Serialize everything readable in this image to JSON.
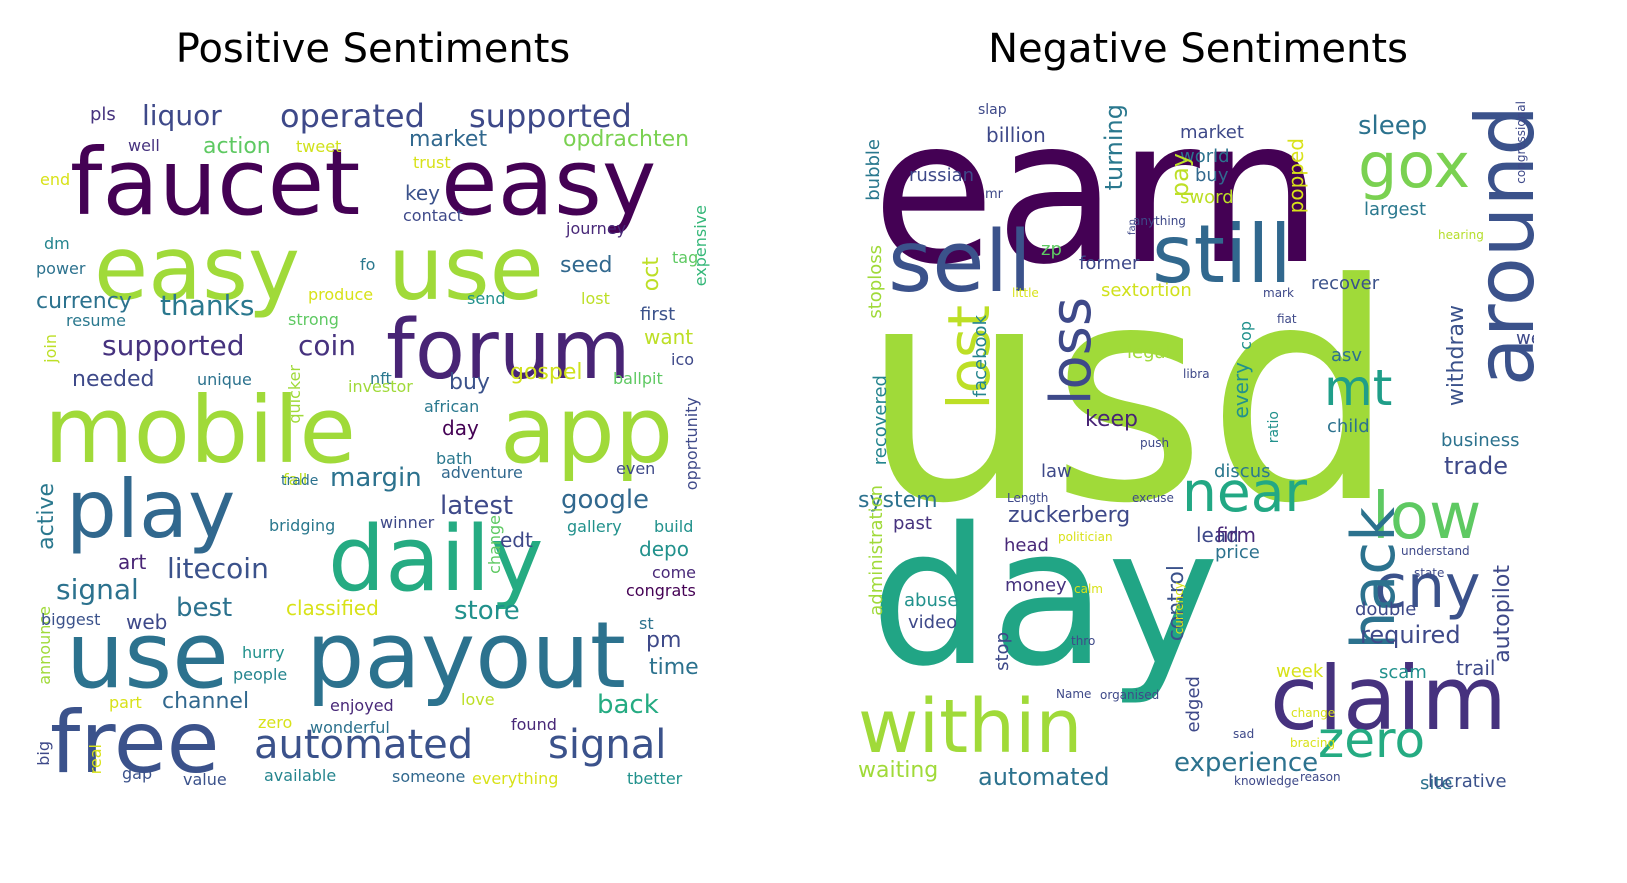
{
  "panels": [
    {
      "title": "Positive Sentiments",
      "words": [
        {
          "t": "faucet",
          "c": "#440154"
        },
        {
          "t": "easy",
          "c": "#440154"
        },
        {
          "t": "easy",
          "c": "#a0da39"
        },
        {
          "t": "use",
          "c": "#a0da39"
        },
        {
          "t": "forum",
          "c": "#482475"
        },
        {
          "t": "mobile",
          "c": "#a0da39"
        },
        {
          "t": "app",
          "c": "#a0da39"
        },
        {
          "t": "play",
          "c": "#31688e"
        },
        {
          "t": "daily",
          "c": "#25ab82"
        },
        {
          "t": "use",
          "c": "#2c728e"
        },
        {
          "t": "payout",
          "c": "#2c728e"
        },
        {
          "t": "free",
          "c": "#3b528b"
        },
        {
          "t": "automated",
          "c": "#3b528b"
        },
        {
          "t": "signal",
          "c": "#3b528b"
        },
        {
          "t": "operated",
          "c": "#3e4989"
        },
        {
          "t": "supported",
          "c": "#3e4989"
        },
        {
          "t": "liquor",
          "c": "#3e4989"
        },
        {
          "t": "pls",
          "c": "#46327e"
        },
        {
          "t": "action",
          "c": "#5ec962"
        },
        {
          "t": "tweet",
          "c": "#d0e11c"
        },
        {
          "t": "well",
          "c": "#46327e"
        },
        {
          "t": "market",
          "c": "#31688e"
        },
        {
          "t": "opdrachten",
          "c": "#7ad151"
        },
        {
          "t": "trust",
          "c": "#d8e219"
        },
        {
          "t": "end",
          "c": "#d8e219"
        },
        {
          "t": "key",
          "c": "#3b528b"
        },
        {
          "t": "contact",
          "c": "#3e4989"
        },
        {
          "t": "journey",
          "c": "#482878"
        },
        {
          "t": "dm",
          "c": "#25858e"
        },
        {
          "t": "power",
          "c": "#2c728e"
        },
        {
          "t": "fo",
          "c": "#2a788e"
        },
        {
          "t": "seed",
          "c": "#31688e"
        },
        {
          "t": "oct",
          "c": "#bddf26"
        },
        {
          "t": "tag",
          "c": "#5ec962"
        },
        {
          "t": "expensive",
          "c": "#35b779"
        },
        {
          "t": "currency",
          "c": "#2c728e"
        },
        {
          "t": "thanks",
          "c": "#2a788e"
        },
        {
          "t": "resume",
          "c": "#2a788e"
        },
        {
          "t": "produce",
          "c": "#d8e219"
        },
        {
          "t": "strong",
          "c": "#5ec962"
        },
        {
          "t": "send",
          "c": "#21918c"
        },
        {
          "t": "lost",
          "c": "#bddf26"
        },
        {
          "t": "first",
          "c": "#3b528b"
        },
        {
          "t": "supported",
          "c": "#46327e"
        },
        {
          "t": "coin",
          "c": "#46327e"
        },
        {
          "t": "want",
          "c": "#bddf26"
        },
        {
          "t": "join",
          "c": "#bddf26"
        },
        {
          "t": "needed",
          "c": "#3e4989"
        },
        {
          "t": "unique",
          "c": "#2c728e"
        },
        {
          "t": "quicker",
          "c": "#a0da39"
        },
        {
          "t": "nft",
          "c": "#2a788e"
        },
        {
          "t": "investor",
          "c": "#a0da39"
        },
        {
          "t": "buy",
          "c": "#3b528b"
        },
        {
          "t": "gospel",
          "c": "#d0e11c"
        },
        {
          "t": "ico",
          "c": "#3e4989"
        },
        {
          "t": "ballpit",
          "c": "#5ec962"
        },
        {
          "t": "african",
          "c": "#2a788e"
        },
        {
          "t": "day",
          "c": "#440154"
        },
        {
          "t": "opportunity",
          "c": "#3e4989"
        },
        {
          "t": "bath",
          "c": "#2a788e"
        },
        {
          "t": "adventure",
          "c": "#31688e"
        },
        {
          "t": "even",
          "c": "#3e4989"
        },
        {
          "t": "active",
          "c": "#2a788e"
        },
        {
          "t": "margin",
          "c": "#2c728e"
        },
        {
          "t": "fall",
          "c": "#bddf26"
        },
        {
          "t": "latest",
          "c": "#3e4989"
        },
        {
          "t": "google",
          "c": "#31688e"
        },
        {
          "t": "trade",
          "c": "#2c728e"
        },
        {
          "t": "bridging",
          "c": "#2a788e"
        },
        {
          "t": "winner",
          "c": "#3e4989"
        },
        {
          "t": "gallery",
          "c": "#21918c"
        },
        {
          "t": "build",
          "c": "#21918c"
        },
        {
          "t": "change",
          "c": "#5ec962"
        },
        {
          "t": "edt",
          "c": "#3e4989"
        },
        {
          "t": "depo",
          "c": "#21918c"
        },
        {
          "t": "art",
          "c": "#482475"
        },
        {
          "t": "litecoin",
          "c": "#3b528b"
        },
        {
          "t": "come",
          "c": "#482878"
        },
        {
          "t": "signal",
          "c": "#2c728e"
        },
        {
          "t": "congrats",
          "c": "#440154"
        },
        {
          "t": "best",
          "c": "#2c728e"
        },
        {
          "t": "announce",
          "c": "#a0da39"
        },
        {
          "t": "biggest",
          "c": "#3b528b"
        },
        {
          "t": "web",
          "c": "#3e4989"
        },
        {
          "t": "classified",
          "c": "#d8e219"
        },
        {
          "t": "store",
          "c": "#21918c"
        },
        {
          "t": "st",
          "c": "#2c728e"
        },
        {
          "t": "pm",
          "c": "#3e4989"
        },
        {
          "t": "time",
          "c": "#2c728e"
        },
        {
          "t": "hurry",
          "c": "#21918c"
        },
        {
          "t": "people",
          "c": "#25858e"
        },
        {
          "t": "part",
          "c": "#d8e219"
        },
        {
          "t": "channel",
          "c": "#31688e"
        },
        {
          "t": "enjoyed",
          "c": "#482878"
        },
        {
          "t": "love",
          "c": "#bddf26"
        },
        {
          "t": "back",
          "c": "#25ab82"
        },
        {
          "t": "zero",
          "c": "#d8e219"
        },
        {
          "t": "wonderful",
          "c": "#2c728e"
        },
        {
          "t": "found",
          "c": "#482878"
        },
        {
          "t": "big",
          "c": "#3e4989"
        },
        {
          "t": "real",
          "c": "#d8e219"
        },
        {
          "t": "gap",
          "c": "#3b528b"
        },
        {
          "t": "value",
          "c": "#3b528b"
        },
        {
          "t": "available",
          "c": "#25858e"
        },
        {
          "t": "someone",
          "c": "#31688e"
        },
        {
          "t": "everything",
          "c": "#d8e219"
        },
        {
          "t": "tbetter",
          "c": "#21918c"
        }
      ]
    },
    {
      "title": "Negative Sentiments",
      "words": [
        {
          "t": "earn",
          "c": "#440154"
        },
        {
          "t": "usd",
          "c": "#a0da39"
        },
        {
          "t": "day",
          "c": "#21a585"
        },
        {
          "t": "sell",
          "c": "#3b528b"
        },
        {
          "t": "still",
          "c": "#31688e"
        },
        {
          "t": "around",
          "c": "#3b528b"
        },
        {
          "t": "gox",
          "c": "#7ad151"
        },
        {
          "t": "within",
          "c": "#a0da39"
        },
        {
          "t": "claim",
          "c": "#46327e"
        },
        {
          "t": "near",
          "c": "#22a884"
        },
        {
          "t": "low",
          "c": "#5ec962"
        },
        {
          "t": "cny",
          "c": "#3b528b"
        },
        {
          "t": "hack",
          "c": "#2c728e"
        },
        {
          "t": "mt",
          "c": "#1f9e89"
        },
        {
          "t": "loss",
          "c": "#3e4989"
        },
        {
          "t": "lost",
          "c": "#bddf26"
        },
        {
          "t": "zero",
          "c": "#25ab82"
        },
        {
          "t": "sleep",
          "c": "#2c728e"
        },
        {
          "t": "slap",
          "c": "#3e4989"
        },
        {
          "t": "billion",
          "c": "#3e4989"
        },
        {
          "t": "russian",
          "c": "#3e4989"
        },
        {
          "t": "mr",
          "c": "#3e4989"
        },
        {
          "t": "bubble",
          "c": "#2a788e"
        },
        {
          "t": "turning",
          "c": "#2a788e"
        },
        {
          "t": "market",
          "c": "#3e4989"
        },
        {
          "t": "world",
          "c": "#2c728e"
        },
        {
          "t": "buy",
          "c": "#31688e"
        },
        {
          "t": "sword",
          "c": "#bddf26"
        },
        {
          "t": "pay",
          "c": "#bddf26"
        },
        {
          "t": "popped",
          "c": "#d8e219"
        },
        {
          "t": "largest",
          "c": "#2a788e"
        },
        {
          "t": "congressional",
          "c": "#3e4989"
        },
        {
          "t": "hearing",
          "c": "#b5de2b"
        },
        {
          "t": "anything",
          "c": "#3e4989"
        },
        {
          "t": "fan",
          "c": "#3e4989"
        },
        {
          "t": "zp",
          "c": "#5ec962"
        },
        {
          "t": "former",
          "c": "#3e4989"
        },
        {
          "t": "little",
          "c": "#d8e219"
        },
        {
          "t": "sextortion",
          "c": "#d0e11c"
        },
        {
          "t": "recover",
          "c": "#3b528b"
        },
        {
          "t": "mark",
          "c": "#3e4989"
        },
        {
          "t": "fiat",
          "c": "#3e4989"
        },
        {
          "t": "stoploss",
          "c": "#a0da39"
        },
        {
          "t": "facebook",
          "c": "#25858e"
        },
        {
          "t": "cop",
          "c": "#21918c"
        },
        {
          "t": "withdraw",
          "c": "#3b528b"
        },
        {
          "t": "well",
          "c": "#3e4989"
        },
        {
          "t": "legal",
          "c": "#a0da39"
        },
        {
          "t": "libra",
          "c": "#3e4989"
        },
        {
          "t": "every",
          "c": "#21918c"
        },
        {
          "t": "asv",
          "c": "#2c728e"
        },
        {
          "t": "recovered",
          "c": "#25858e"
        },
        {
          "t": "keep",
          "c": "#482475"
        },
        {
          "t": "ratio",
          "c": "#21918c"
        },
        {
          "t": "child",
          "c": "#2c728e"
        },
        {
          "t": "push",
          "c": "#3e4989"
        },
        {
          "t": "business",
          "c": "#2c728e"
        },
        {
          "t": "law",
          "c": "#3e4989"
        },
        {
          "t": "discus",
          "c": "#2a788e"
        },
        {
          "t": "trade",
          "c": "#3e4989"
        },
        {
          "t": "system",
          "c": "#2c728e"
        },
        {
          "t": "Length",
          "c": "#3e4989"
        },
        {
          "t": "excuse",
          "c": "#3e4989"
        },
        {
          "t": "zuckerberg",
          "c": "#3e4989"
        },
        {
          "t": "past",
          "c": "#46327e"
        },
        {
          "t": "politician",
          "c": "#d8e219"
        },
        {
          "t": "head",
          "c": "#482878"
        },
        {
          "t": "lead",
          "c": "#3e4989"
        },
        {
          "t": "firm",
          "c": "#482878"
        },
        {
          "t": "autopilot",
          "c": "#3e4989"
        },
        {
          "t": "understand",
          "c": "#3e4989"
        },
        {
          "t": "price",
          "c": "#2c728e"
        },
        {
          "t": "state",
          "c": "#3e4989"
        },
        {
          "t": "administration",
          "c": "#a0da39"
        },
        {
          "t": "control",
          "c": "#3b528b"
        },
        {
          "t": "money",
          "c": "#46327e"
        },
        {
          "t": "calm",
          "c": "#d8e219"
        },
        {
          "t": "currency",
          "c": "#d8e219"
        },
        {
          "t": "double",
          "c": "#3e4989"
        },
        {
          "t": "required",
          "c": "#3e4989"
        },
        {
          "t": "abuse",
          "c": "#21918c"
        },
        {
          "t": "video",
          "c": "#3e4989"
        },
        {
          "t": "stop",
          "c": "#3e4989"
        },
        {
          "t": "thro",
          "c": "#3e4989"
        },
        {
          "t": "week",
          "c": "#d8e219"
        },
        {
          "t": "scam",
          "c": "#21918c"
        },
        {
          "t": "trail",
          "c": "#3e4989"
        },
        {
          "t": "Name",
          "c": "#3e4989"
        },
        {
          "t": "organised",
          "c": "#3e4989"
        },
        {
          "t": "edged",
          "c": "#3e4989"
        },
        {
          "t": "change",
          "c": "#d8e219"
        },
        {
          "t": "sad",
          "c": "#3e4989"
        },
        {
          "t": "bracing",
          "c": "#d8e219"
        },
        {
          "t": "waiting",
          "c": "#a0da39"
        },
        {
          "t": "automated",
          "c": "#2c728e"
        },
        {
          "t": "experience",
          "c": "#2c728e"
        },
        {
          "t": "knowledge",
          "c": "#3e4989"
        },
        {
          "t": "reason",
          "c": "#3e4989"
        },
        {
          "t": "site",
          "c": "#2c728e"
        },
        {
          "t": "lucrative",
          "c": "#3b528b"
        }
      ]
    }
  ]
}
